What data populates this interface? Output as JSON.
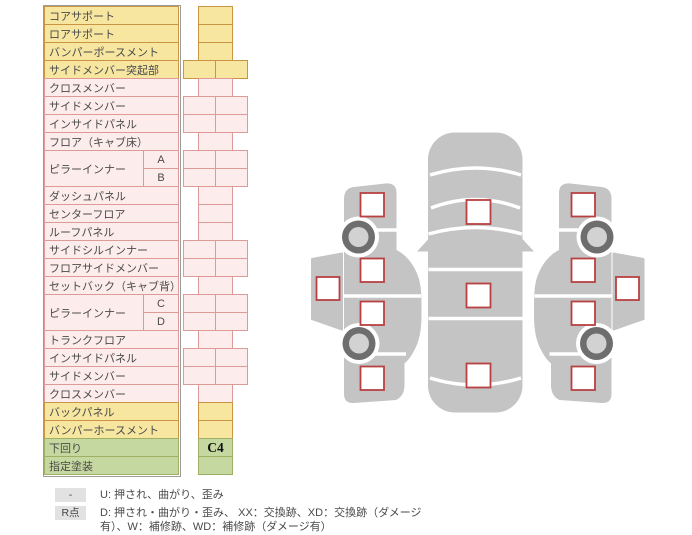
{
  "table": {
    "rows": [
      {
        "label": "コアサポート",
        "group": "yellow",
        "cell": "single"
      },
      {
        "label": "ロアサポート",
        "group": "yellow",
        "cell": "single"
      },
      {
        "label": "バンパーポースメント",
        "group": "yellow",
        "cell": "single"
      },
      {
        "label": "サイドメンバー突起部",
        "group": "yellow",
        "cell": "double"
      },
      {
        "label": "クロスメンバー",
        "group": "pink",
        "cell": "single"
      },
      {
        "label": "サイドメンバー",
        "group": "pink",
        "cell": "double"
      },
      {
        "label": "インサイドパネル",
        "group": "pink",
        "cell": "double"
      },
      {
        "label": "フロア（キャブ床）",
        "group": "pink",
        "cell": "single"
      },
      {
        "label": "ピラーインナー",
        "group": "pink",
        "cell": "double",
        "subs": [
          "A",
          "B"
        ]
      },
      {
        "label": "ダッシュパネル",
        "group": "pink",
        "cell": "single"
      },
      {
        "label": "センターフロア",
        "group": "pink",
        "cell": "single"
      },
      {
        "label": "ルーフパネル",
        "group": "pink",
        "cell": "single"
      },
      {
        "label": "サイドシルインナー",
        "group": "pink",
        "cell": "double"
      },
      {
        "label": "フロアサイドメンバー",
        "group": "pink",
        "cell": "double"
      },
      {
        "label": "セットバック（キャブ背）",
        "group": "pink",
        "cell": "single"
      },
      {
        "label": "ピラーインナー",
        "group": "pink",
        "cell": "double",
        "subs": [
          "C",
          "D"
        ]
      },
      {
        "label": "トランクフロア",
        "group": "pink",
        "cell": "single"
      },
      {
        "label": "インサイドパネル",
        "group": "pink",
        "cell": "double"
      },
      {
        "label": "サイドメンバー",
        "group": "pink",
        "cell": "double"
      },
      {
        "label": "クロスメンバー",
        "group": "pink",
        "cell": "single"
      },
      {
        "label": "バックパネル",
        "group": "yellow",
        "cell": "single"
      },
      {
        "label": "バンパーホースメント",
        "group": "yellow",
        "cell": "single"
      },
      {
        "label": "下回り",
        "group": "green",
        "cell": "single",
        "value": "C4"
      },
      {
        "label": "指定塗装",
        "group": "green",
        "cell": "single"
      }
    ]
  },
  "legend": {
    "entries": [
      {
        "badge": "-",
        "text": "U: 押され、曲がり、歪み"
      },
      {
        "badge": "R点",
        "text": "D: 押され・曲がり・歪み、 XX：交換跡、XD：交換跡（ダメージ有）、W：補修跡、WD：補修跡（ダメージ有）"
      }
    ]
  },
  "colors": {
    "row_yellow": "#f6e6a0",
    "row_yellow_border": "#c99544",
    "row_pink": "#fdecec",
    "row_pink_border": "#dc9a98",
    "row_green": "#c5d8a0",
    "row_green_border": "#9fb065",
    "car_body": "#c4c4c4",
    "wheel_ring": "#6e6e6e",
    "wheel_hub": "#d2d2d2",
    "marker_border": "#b94040",
    "badge_bg": "#e2e2e2",
    "text": "#4a4a4a"
  }
}
